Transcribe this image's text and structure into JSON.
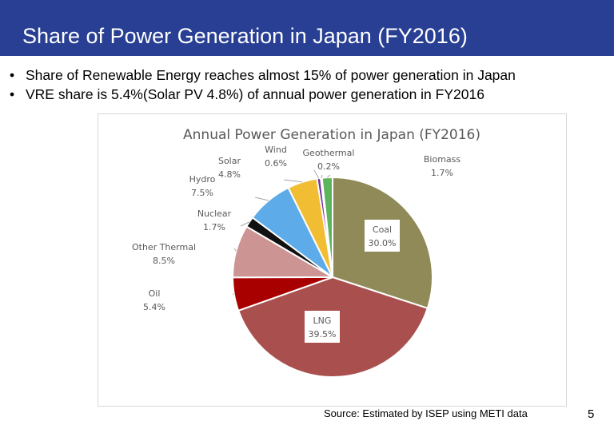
{
  "slide": {
    "title": "Share of Power Generation in Japan  (FY2016)",
    "bullets": [
      "Share of Renewable Energy reaches almost 15% of power generation in Japan",
      "VRE share is 5.4%(Solar PV 4.8%) of annual power generation in FY2016"
    ],
    "bullet_glyph": "•",
    "source": "Source: Estimated by ISEP using METI data",
    "page_number": "5",
    "header_color": "#283f94"
  },
  "chart_data": {
    "type": "pie",
    "title": "Annual Power Generation in Japan (FY2016)",
    "start_angle": "12 o'clock, clockwise",
    "categories": [
      "Coal",
      "LNG",
      "Oil",
      "Other Thermal",
      "Nuclear",
      "Hydro",
      "Solar",
      "Wind",
      "Geothermal",
      "Biomass"
    ],
    "values": [
      30.0,
      39.5,
      5.4,
      8.5,
      1.7,
      7.5,
      4.8,
      0.6,
      0.2,
      1.7
    ],
    "labels": [
      "30.0%",
      "39.5%",
      "5.4%",
      "8.5%",
      "1.7%",
      "7.5%",
      "4.8%",
      "0.6%",
      "0.2%",
      "1.7%"
    ],
    "colors": [
      "#8f8a58",
      "#a9504e",
      "#a80000",
      "#cc9593",
      "#111111",
      "#5dabe8",
      "#f0bd33",
      "#7030a0",
      "#a9d18e",
      "#5cb45c"
    ],
    "unit": "%"
  }
}
